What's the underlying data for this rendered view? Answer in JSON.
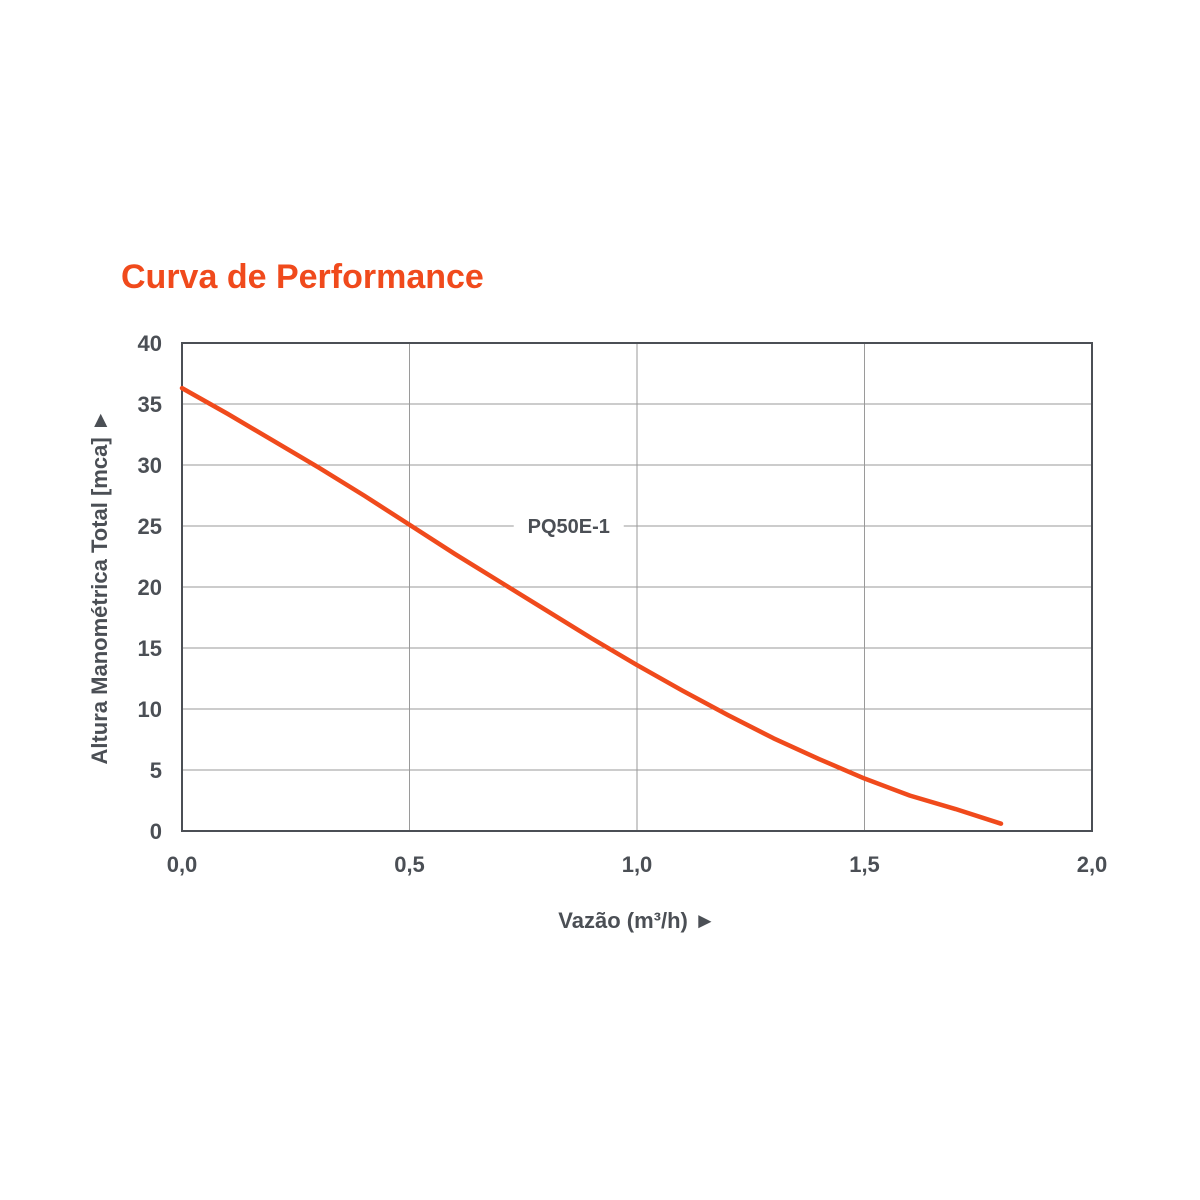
{
  "title": "Curva de Performance",
  "colors": {
    "curve": "#f04a1c",
    "title": "#f04a1c",
    "grid": "#9a9a9a",
    "frame": "#4b4f55",
    "text": "#4b4f55"
  },
  "chart_data": {
    "type": "line",
    "title": "Curva de Performance",
    "xlabel": "Vazão (m³/h) ►",
    "ylabel": "Altura Manométrica Total [mca] ►",
    "xlim": [
      0,
      2.0
    ],
    "ylim": [
      0,
      40
    ],
    "grid": true,
    "x_ticks": [
      "0,0",
      "0,5",
      "1,0",
      "1,5",
      "2,0"
    ],
    "y_ticks": [
      "0",
      "5",
      "10",
      "15",
      "20",
      "25",
      "30",
      "35",
      "40"
    ],
    "series": [
      {
        "name": "PQ50E-1",
        "x": [
          0.0,
          0.1,
          0.2,
          0.3,
          0.4,
          0.5,
          0.6,
          0.7,
          0.8,
          0.9,
          1.0,
          1.1,
          1.2,
          1.3,
          1.4,
          1.5,
          1.6,
          1.7,
          1.8
        ],
        "y": [
          36.3,
          34.2,
          32.0,
          29.8,
          27.5,
          25.1,
          22.7,
          20.4,
          18.1,
          15.8,
          13.6,
          11.5,
          9.5,
          7.6,
          5.9,
          4.3,
          2.9,
          1.8,
          0.6
        ]
      }
    ],
    "annotations": [
      {
        "text": "PQ50E-1",
        "x": 0.85,
        "y": 25
      }
    ]
  }
}
